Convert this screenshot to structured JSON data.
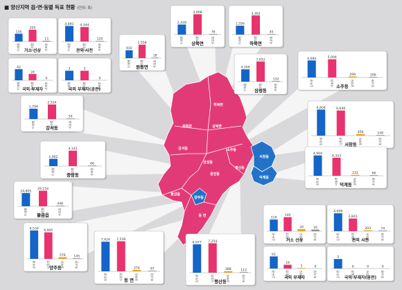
{
  "title": "■ 양산지역 읍·면·동별 득표 현황",
  "unit": "(단위: 표)",
  "colors": {
    "blue": "#1565c8",
    "pink": "#e8336e",
    "orange": "#f0a419",
    "gray": "#8c8c8c",
    "map_pink": "#e23a76",
    "map_blue": "#2272c8"
  },
  "map_labels": {
    "sangbuk": "상북면",
    "habuk": "하북면",
    "wondong": "원동면",
    "gangseo": "강서동",
    "samseong": "삼성동",
    "jungang": "중앙동",
    "soju": "소주동",
    "seochang": "서창동",
    "pyeongsan": "평산동",
    "deokgye": "덕계동",
    "mulgeum": "물금읍",
    "yangju": "양주동",
    "dong": "동 면"
  },
  "chart_data": [
    {
      "type": "bar",
      "title": "거소 선상",
      "categories": [
        "이재명",
        "윤석열",
        "사표층"
      ],
      "values": [
        135,
        205,
        13
      ]
    },
    {
      "type": "bar",
      "title": "관외 사전",
      "categories": [
        "이재명",
        "윤석열",
        "사표층"
      ],
      "values": [
        4691,
        4344,
        120
      ]
    },
    {
      "type": "bar",
      "title": "국외 부재자",
      "categories": [
        "이재명",
        "윤석열",
        "사표층"
      ],
      "values": [
        42,
        24,
        0
      ]
    },
    {
      "type": "bar",
      "title": "국외 부재자(공관)",
      "categories": [
        "이재명",
        "윤석열",
        "사표층"
      ],
      "values": [
        3,
        3,
        0
      ]
    },
    {
      "type": "bar",
      "title": "원동면",
      "categories": [
        "이재명",
        "윤석열",
        "사표층"
      ],
      "values": [
        910,
        1558,
        18
      ]
    },
    {
      "type": "bar",
      "title": "상북면",
      "categories": [
        "이재명",
        "윤석열",
        "사표층"
      ],
      "values": [
        2428,
        4908,
        76
      ]
    },
    {
      "type": "bar",
      "title": "하북면",
      "categories": [
        "이재명",
        "윤석열",
        "사표층"
      ],
      "values": [
        1556,
        3362,
        45
      ]
    },
    {
      "type": "bar",
      "title": "삼성동",
      "categories": [
        "이재명",
        "윤석열",
        "사표층"
      ],
      "values": [
        4309,
        7052,
        132
      ]
    },
    {
      "type": "bar",
      "title": "강서동",
      "categories": [
        "이재명",
        "윤석열",
        "사표층"
      ],
      "values": [
        1794,
        2524,
        50
      ]
    },
    {
      "type": "bar",
      "title": "중앙동",
      "categories": [
        "이재명",
        "윤석열",
        "사표층"
      ],
      "values": [
        1962,
        4142,
        66
      ]
    },
    {
      "type": "bar",
      "title": "물금읍",
      "categories": [
        "이재명",
        "윤석열",
        "사표층"
      ],
      "values": [
        24805,
        29154,
        448
      ]
    },
    {
      "type": "bar",
      "title": "소주동",
      "categories": [
        "김두관",
        "나동연",
        "권혁두",
        "최사랑"
      ],
      "values": [
        4684,
        5004,
        299,
        106
      ]
    },
    {
      "type": "bar",
      "title": "서창동",
      "categories": [
        "김두관",
        "나동연",
        "권혁두",
        "최사랑"
      ],
      "values": [
        6904,
        6646,
        456,
        140
      ]
    },
    {
      "type": "bar",
      "title": "덕계동",
      "categories": [
        "김두관",
        "나동연",
        "권혁두",
        "최사랑"
      ],
      "values": [
        4904,
        4353,
        232,
        66
      ]
    },
    {
      "type": "bar",
      "title": "양주동",
      "categories": [
        "김두관",
        "나동연",
        "권혁두",
        "최사랑"
      ],
      "values": [
        9534,
        8905,
        576,
        145
      ]
    },
    {
      "type": "bar",
      "title": "동 면",
      "categories": [
        "김두관",
        "나동연",
        "권혁두",
        "최사랑"
      ],
      "values": [
        7424,
        7539,
        374,
        97
      ]
    },
    {
      "type": "bar",
      "title": "평산동",
      "categories": [
        "김두관",
        "나동연",
        "권혁두",
        "최사랑"
      ],
      "values": [
        6977,
        7254,
        388,
        112
      ]
    },
    {
      "type": "bar",
      "title": "거소 선상",
      "categories": [
        "김두관",
        "나동연",
        "권혁두",
        "최사랑"
      ],
      "values": [
        116,
        140,
        20,
        16
      ]
    },
    {
      "type": "bar",
      "title": "관외 사전",
      "categories": [
        "김두관",
        "나동연",
        "권혁두",
        "최사랑"
      ],
      "values": [
        4008,
        2841,
        203,
        74
      ]
    },
    {
      "type": "bar",
      "title": "국외 부재자",
      "categories": [
        "김두관",
        "나동연",
        "권혁두",
        "최사랑"
      ],
      "values": [
        61,
        19,
        1,
        0
      ]
    },
    {
      "type": "bar",
      "title": "국외 부재자(공관)",
      "categories": [
        "김두관",
        "나동연",
        "권혁두",
        "최사랑"
      ],
      "values": [
        3,
        0,
        0,
        0
      ]
    }
  ]
}
